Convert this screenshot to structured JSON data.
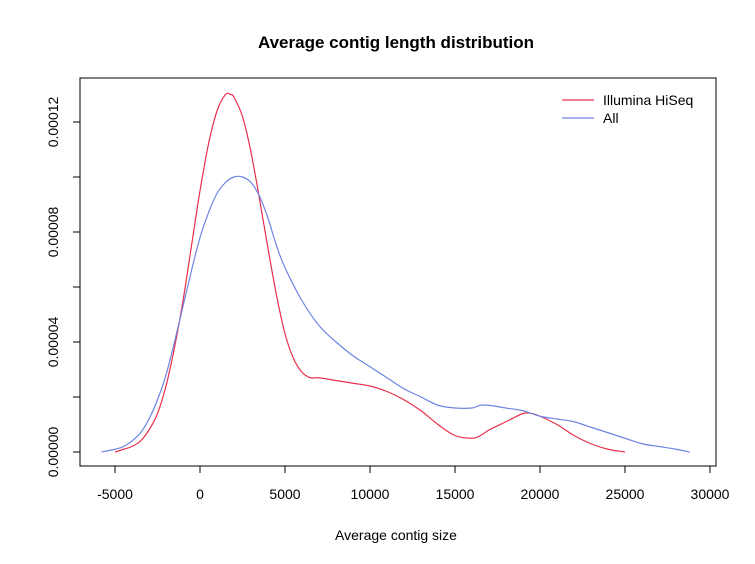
{
  "chart_data": {
    "type": "line",
    "title": "Average contig length distribution",
    "xlabel": "Average contig size",
    "ylabel": "",
    "xlim": [
      -6500,
      30000
    ],
    "ylim": [
      -5e-06,
      0.00013
    ],
    "x_ticks": [
      -5000,
      0,
      5000,
      10000,
      15000,
      20000,
      25000,
      30000
    ],
    "x_tick_labels": [
      "-5000",
      "0",
      "5000",
      "10000",
      "15000",
      "20000",
      "25000",
      "30000"
    ],
    "y_ticks": [
      0.0,
      2e-05,
      4e-05,
      6e-05,
      8e-05,
      0.0001,
      0.00012
    ],
    "y_tick_labels": [
      "0.00000",
      "",
      "0.00004",
      "",
      "0.00008",
      "",
      "0.00012"
    ],
    "grid": false,
    "legend_position": "top-right",
    "series": [
      {
        "name": "Illumina HiSeq",
        "color": "#e8314b",
        "x": [
          -5000,
          -4500,
          -4000,
          -3500,
          -3000,
          -2500,
          -2000,
          -1500,
          -1000,
          -500,
          0,
          500,
          1000,
          1500,
          1800,
          2000,
          2500,
          3000,
          3500,
          4000,
          4500,
          5000,
          5500,
          6000,
          6500,
          7000,
          8000,
          9000,
          10000,
          11000,
          12000,
          13000,
          14000,
          15000,
          16000,
          16500,
          17000,
          18000,
          19000,
          19500,
          20000,
          21000,
          22000,
          23000,
          24000,
          25000
        ],
        "y": [
          0.0,
          1e-06,
          2e-06,
          4e-06,
          8e-06,
          1.4e-05,
          2.4e-05,
          3.8e-05,
          5.5e-05,
          7.5e-05,
          9.5e-05,
          0.000112,
          0.000124,
          0.00013,
          0.00013,
          0.000129,
          0.000122,
          0.000109,
          9.2e-05,
          7.4e-05,
          5.7e-05,
          4.3e-05,
          3.4e-05,
          2.9e-05,
          2.7e-05,
          2.7e-05,
          2.6e-05,
          2.5e-05,
          2.4e-05,
          2.2e-05,
          1.9e-05,
          1.5e-05,
          1e-05,
          6e-06,
          5e-06,
          6e-06,
          8e-06,
          1.1e-05,
          1.4e-05,
          1.4e-05,
          1.3e-05,
          1e-05,
          6e-06,
          3e-06,
          1e-06,
          0.0
        ]
      },
      {
        "name": "All",
        "color": "#6d85e3",
        "x": [
          -5800,
          -5000,
          -4500,
          -4000,
          -3500,
          -3000,
          -2500,
          -2000,
          -1500,
          -1000,
          -500,
          0,
          500,
          1000,
          1500,
          2000,
          2500,
          3000,
          3500,
          4000,
          4500,
          5000,
          6000,
          7000,
          8000,
          9000,
          10000,
          11000,
          12000,
          13000,
          14000,
          15000,
          16000,
          16500,
          17000,
          18000,
          19000,
          20000,
          21000,
          22000,
          23000,
          24000,
          25000,
          26000,
          27000,
          28000,
          28800
        ],
        "y": [
          0.0,
          1e-06,
          2e-06,
          4e-06,
          7e-06,
          1.2e-05,
          1.9e-05,
          2.8e-05,
          4e-05,
          5.3e-05,
          6.6e-05,
          7.8e-05,
          8.7e-05,
          9.4e-05,
          9.8e-05,
          0.0001,
          0.0001,
          9.8e-05,
          9.3e-05,
          8.5e-05,
          7.5e-05,
          6.7e-05,
          5.5e-05,
          4.6e-05,
          4e-05,
          3.5e-05,
          3.1e-05,
          2.7e-05,
          2.3e-05,
          2e-05,
          1.7e-05,
          1.6e-05,
          1.6e-05,
          1.7e-05,
          1.7e-05,
          1.6e-05,
          1.5e-05,
          1.3e-05,
          1.2e-05,
          1.1e-05,
          9e-06,
          7e-06,
          5e-06,
          3e-06,
          2e-06,
          1e-06,
          0.0
        ]
      }
    ]
  }
}
